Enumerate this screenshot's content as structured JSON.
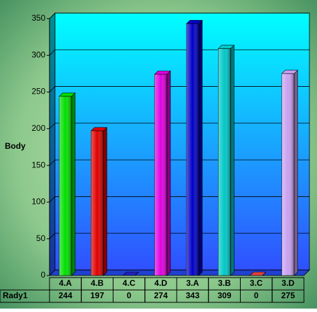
{
  "chart_data": {
    "type": "bar3d",
    "y_label": "Body",
    "categories": [
      "4.A",
      "4.B",
      "4.C",
      "4.D",
      "3.A",
      "3.B",
      "3.C",
      "3.D"
    ],
    "series": [
      {
        "name": "Rady1",
        "values": [
          244,
          197,
          0,
          274,
          343,
          309,
          0,
          275
        ],
        "colors": [
          "#00e000",
          "#e00000",
          "#2020c0",
          "#e000e0",
          "#0000c8",
          "#00c8c8",
          "#e04040",
          "#c8a0f0"
        ]
      }
    ],
    "ylim": [
      0,
      350
    ],
    "yticks": [
      0,
      50,
      100,
      150,
      200,
      250,
      300,
      350
    ],
    "grid": true,
    "data_table": true
  }
}
